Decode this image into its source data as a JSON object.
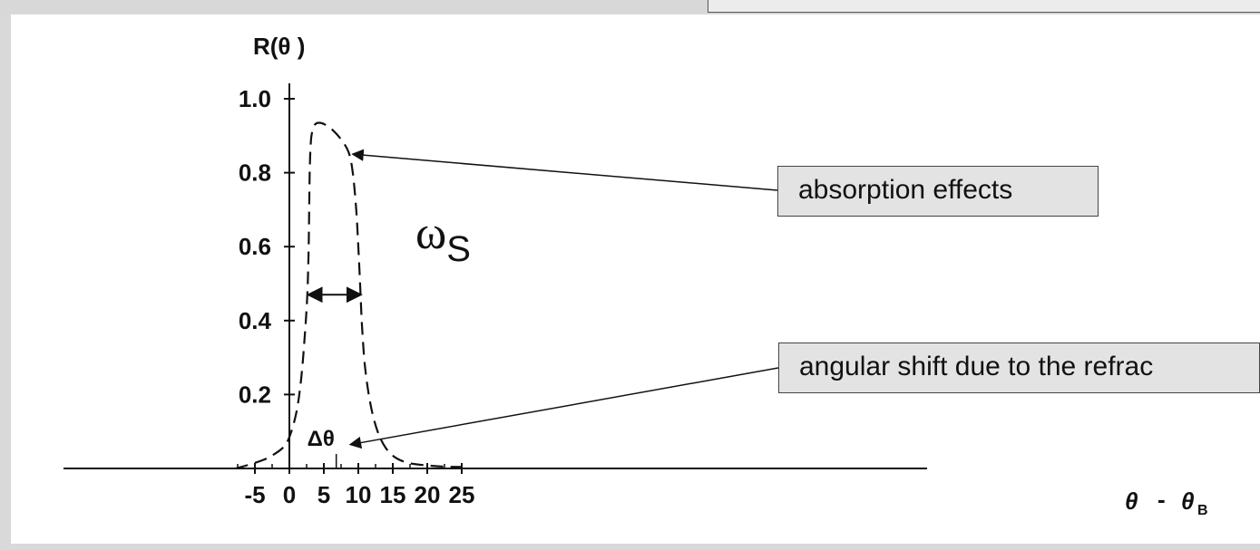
{
  "chart_data": {
    "type": "line",
    "ylabel": "R(θ )",
    "xlabel_main": "θ",
    "xlabel_sep": "-",
    "xlabel_sub_base": "θ",
    "xlabel_sub": "B",
    "xlim": [
      -8,
      25
    ],
    "ylim": [
      0,
      1.0
    ],
    "xticks": [
      -5,
      0,
      5,
      10,
      15,
      20,
      25
    ],
    "xtick_labels": [
      "-5",
      "0",
      "5",
      "10",
      "15",
      "20",
      "25"
    ],
    "yticks": [
      0.2,
      0.4,
      0.6,
      0.8,
      1.0
    ],
    "ytick_labels": [
      "0.2",
      "0.4",
      "0.6",
      "0.8",
      "1.0"
    ],
    "series": [
      {
        "style": "dashed",
        "x": [
          -7.8,
          -5,
          -3,
          -1,
          0,
          1,
          1.7,
          2.2,
          2.6,
          2.8,
          2.95,
          3.1,
          3.3,
          3.7,
          4.3,
          5.2,
          6.3,
          7.5,
          8.6,
          9.2,
          9.7,
          10.0,
          10.3,
          10.55,
          11.0,
          11.8,
          12.8,
          14.0,
          15.5,
          17.5,
          20.0,
          22.5,
          25.0
        ],
        "y": [
          0.0,
          0.015,
          0.03,
          0.055,
          0.085,
          0.15,
          0.24,
          0.35,
          0.47,
          0.6,
          0.8,
          0.88,
          0.91,
          0.93,
          0.935,
          0.93,
          0.915,
          0.89,
          0.855,
          0.8,
          0.7,
          0.6,
          0.48,
          0.38,
          0.27,
          0.17,
          0.1,
          0.055,
          0.028,
          0.014,
          0.008,
          0.005,
          0.004
        ]
      }
    ],
    "annotations": {
      "width_label": "ω",
      "width_label_sub": "S",
      "width_arrow": {
        "x_from": 2.7,
        "x_to": 10.4,
        "y": 0.47
      },
      "delta_label": "Δθ",
      "delta_x": 6.8,
      "absorption_point": {
        "x": 8.9,
        "y": 0.855
      },
      "delta_point": {
        "x": 7.5,
        "y": 0.04
      }
    }
  },
  "callouts": {
    "absorption": "absorption effects",
    "shift": "angular shift due to the refrac"
  }
}
